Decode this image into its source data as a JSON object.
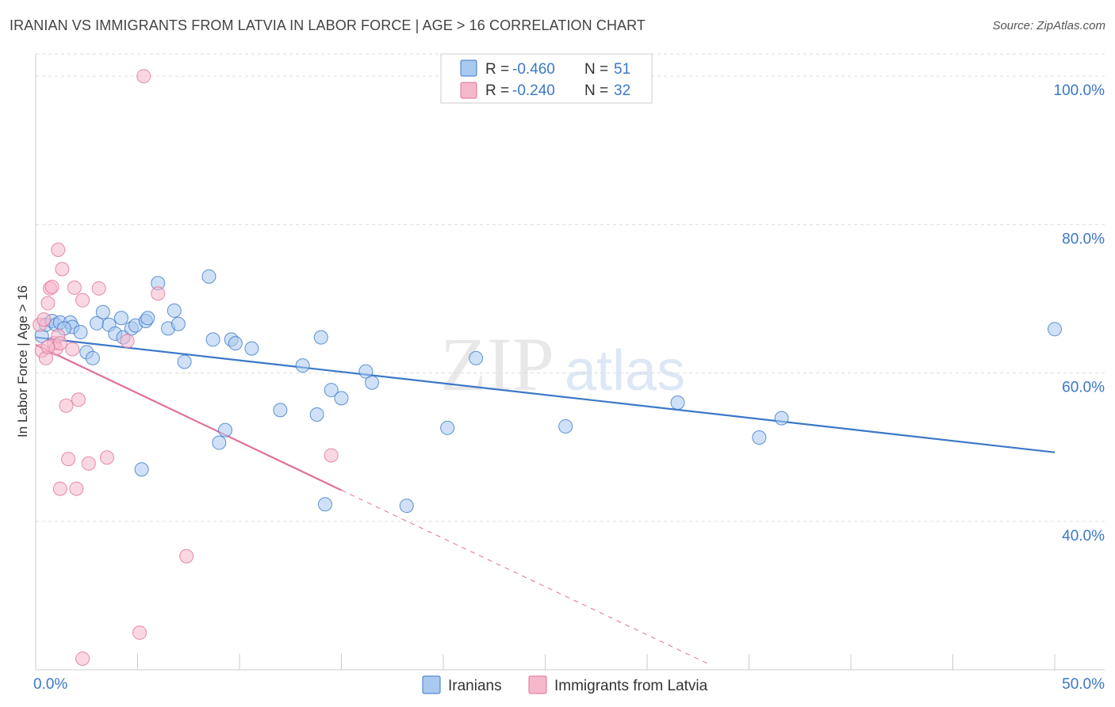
{
  "header": {
    "title": "IRANIAN VS IMMIGRANTS FROM LATVIA IN LABOR FORCE | AGE > 16 CORRELATION CHART",
    "source": "Source: ZipAtlas.com"
  },
  "watermark": {
    "zip": "ZIP",
    "atlas": "atlas"
  },
  "legend": {
    "rows": [
      {
        "r_label": "R = ",
        "r_value": "-0.460",
        "n_label": "N = ",
        "n_value": "51",
        "color": "#a9c9f0"
      },
      {
        "r_label": "R = ",
        "r_value": "-0.240",
        "n_label": "N = ",
        "n_value": "32",
        "color": "#f5b8ca"
      }
    ]
  },
  "chart_data": {
    "type": "scatter",
    "title": "IRANIAN VS IMMIGRANTS FROM LATVIA IN LABOR FORCE | AGE > 16 CORRELATION CHART",
    "xlabel": "",
    "ylabel": "In Labor Force | Age > 16",
    "xlim": [
      0,
      50
    ],
    "ylim": [
      20,
      103
    ],
    "x_tick_labels": [
      "0.0%",
      "50.0%"
    ],
    "y_ticks": [
      40,
      60,
      80,
      100
    ],
    "y_tick_labels": [
      "40.0%",
      "60.0%",
      "80.0%",
      "100.0%"
    ],
    "grid": true,
    "series": [
      {
        "name": "Iranians",
        "color": "#3b78c8",
        "fill": "#a9c9f0",
        "trend": {
          "x0": 0,
          "y0": 64.8,
          "x1": 50,
          "y1": 49.3,
          "dashed_from": null
        },
        "points": [
          [
            0.3,
            65.0
          ],
          [
            0.5,
            66.5
          ],
          [
            0.8,
            67.0
          ],
          [
            1.0,
            66.5
          ],
          [
            1.2,
            66.8
          ],
          [
            1.7,
            66.8
          ],
          [
            1.8,
            66.2
          ],
          [
            2.2,
            65.5
          ],
          [
            2.5,
            62.8
          ],
          [
            2.8,
            62.0
          ],
          [
            3.0,
            66.7
          ],
          [
            3.3,
            68.2
          ],
          [
            3.6,
            66.5
          ],
          [
            3.9,
            65.3
          ],
          [
            4.2,
            67.4
          ],
          [
            4.3,
            64.8
          ],
          [
            4.7,
            66.0
          ],
          [
            4.9,
            66.4
          ],
          [
            5.2,
            47.0
          ],
          [
            5.4,
            67.0
          ],
          [
            5.5,
            67.4
          ],
          [
            6.0,
            72.1
          ],
          [
            6.5,
            66.0
          ],
          [
            6.8,
            68.4
          ],
          [
            7.0,
            66.6
          ],
          [
            7.3,
            61.5
          ],
          [
            8.5,
            73.0
          ],
          [
            8.7,
            64.5
          ],
          [
            9.0,
            50.6
          ],
          [
            9.3,
            52.3
          ],
          [
            9.6,
            64.5
          ],
          [
            9.8,
            64.0
          ],
          [
            10.6,
            63.3
          ],
          [
            12.0,
            55.0
          ],
          [
            13.1,
            61.0
          ],
          [
            13.8,
            54.4
          ],
          [
            14.0,
            64.8
          ],
          [
            14.2,
            42.3
          ],
          [
            14.5,
            57.7
          ],
          [
            15.0,
            56.6
          ],
          [
            16.2,
            60.2
          ],
          [
            16.5,
            58.7
          ],
          [
            18.2,
            42.1
          ],
          [
            20.2,
            52.6
          ],
          [
            21.6,
            62.0
          ],
          [
            26.0,
            52.8
          ],
          [
            31.5,
            56.0
          ],
          [
            35.5,
            51.3
          ],
          [
            36.6,
            53.9
          ],
          [
            50.0,
            65.9
          ],
          [
            1.4,
            66.0
          ]
        ]
      },
      {
        "name": "Immigrants from Latvia",
        "color": "#e0709a",
        "fill": "#f5b8ca",
        "trend": {
          "x0": 0,
          "y0": 63.8,
          "x1": 15.0,
          "y1": 44.2,
          "dashed_to_x": 33.0,
          "dashed_to_y": 20.8
        },
        "points": [
          [
            0.2,
            66.5
          ],
          [
            0.3,
            63.0
          ],
          [
            0.4,
            67.2
          ],
          [
            0.5,
            62.0
          ],
          [
            0.6,
            69.4
          ],
          [
            0.7,
            71.4
          ],
          [
            0.8,
            71.6
          ],
          [
            0.9,
            64.0
          ],
          [
            1.0,
            63.3
          ],
          [
            1.1,
            65.0
          ],
          [
            1.2,
            64.0
          ],
          [
            1.1,
            76.6
          ],
          [
            1.3,
            74.0
          ],
          [
            1.5,
            55.6
          ],
          [
            1.6,
            48.4
          ],
          [
            1.8,
            63.2
          ],
          [
            1.9,
            71.5
          ],
          [
            2.0,
            44.4
          ],
          [
            2.1,
            56.4
          ],
          [
            2.3,
            69.8
          ],
          [
            2.6,
            47.8
          ],
          [
            3.1,
            71.4
          ],
          [
            3.5,
            48.6
          ],
          [
            4.5,
            64.3
          ],
          [
            5.1,
            25.0
          ],
          [
            5.3,
            100.0
          ],
          [
            6.0,
            70.7
          ],
          [
            7.4,
            35.3
          ],
          [
            14.5,
            48.9
          ],
          [
            2.3,
            21.5
          ],
          [
            0.6,
            63.5
          ],
          [
            1.2,
            44.4
          ]
        ]
      }
    ]
  },
  "bottom_legend": [
    {
      "label": "Iranians",
      "color": "#a9c9f0",
      "border": "#3b78c8"
    },
    {
      "label": "Immigrants from Latvia",
      "color": "#f5b8ca",
      "border": "#e0709a"
    }
  ]
}
